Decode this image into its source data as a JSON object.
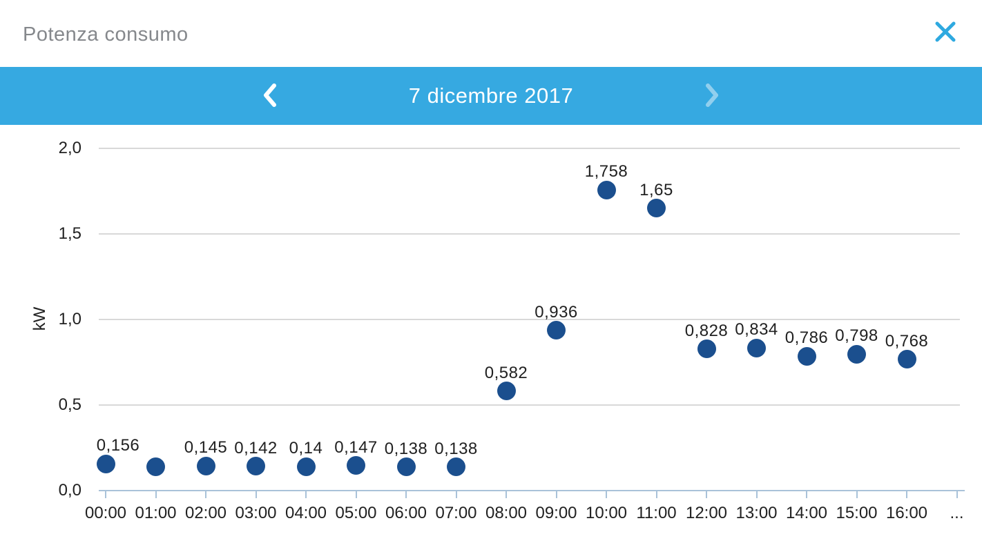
{
  "header": {
    "title": "Potenza consumo"
  },
  "datebar": {
    "date": "7 dicembre 2017"
  },
  "chart_data": {
    "type": "scatter",
    "title": "",
    "xlabel": "",
    "ylabel": "kW",
    "ylim": [
      0,
      2.0
    ],
    "grid": true,
    "legend": false,
    "y_ticks": [
      {
        "value": 0.0,
        "label": "0,0"
      },
      {
        "value": 0.5,
        "label": "0,5"
      },
      {
        "value": 1.0,
        "label": "1,0"
      },
      {
        "value": 1.5,
        "label": "1,5"
      },
      {
        "value": 2.0,
        "label": "2,0"
      }
    ],
    "x_tick_labels": [
      "00:00",
      "01:00",
      "02:00",
      "03:00",
      "04:00",
      "05:00",
      "06:00",
      "07:00",
      "08:00",
      "09:00",
      "10:00",
      "11:00",
      "12:00",
      "13:00",
      "14:00",
      "15:00",
      "16:00",
      "..."
    ],
    "points": [
      {
        "time": "00:00",
        "value": 0.156,
        "label": "0,156"
      },
      {
        "time": "01:00",
        "value": 0.14,
        "label": null
      },
      {
        "time": "02:00",
        "value": 0.145,
        "label": "0,145"
      },
      {
        "time": "03:00",
        "value": 0.142,
        "label": "0,142"
      },
      {
        "time": "04:00",
        "value": 0.14,
        "label": "0,14"
      },
      {
        "time": "05:00",
        "value": 0.147,
        "label": "0,147"
      },
      {
        "time": "06:00",
        "value": 0.138,
        "label": "0,138"
      },
      {
        "time": "07:00",
        "value": 0.138,
        "label": "0,138"
      },
      {
        "time": "08:00",
        "value": 0.582,
        "label": "0,582"
      },
      {
        "time": "09:00",
        "value": 0.936,
        "label": "0,936"
      },
      {
        "time": "10:00",
        "value": 1.758,
        "label": "1,758"
      },
      {
        "time": "11:00",
        "value": 1.65,
        "label": "1,65"
      },
      {
        "time": "12:00",
        "value": 0.828,
        "label": "0,828"
      },
      {
        "time": "13:00",
        "value": 0.834,
        "label": "0,834"
      },
      {
        "time": "14:00",
        "value": 0.786,
        "label": "0,786"
      },
      {
        "time": "15:00",
        "value": 0.798,
        "label": "0,798"
      },
      {
        "time": "16:00",
        "value": 0.768,
        "label": "0,768"
      }
    ],
    "colors": {
      "dot": "#1b4f8e",
      "gridline": "#d8d8d8",
      "axis_line": "#a9c2d9",
      "accent_bar": "#36a9e1",
      "icon_blue": "#2ea9e0",
      "title_text": "#85888c",
      "label_text": "#212121"
    }
  }
}
